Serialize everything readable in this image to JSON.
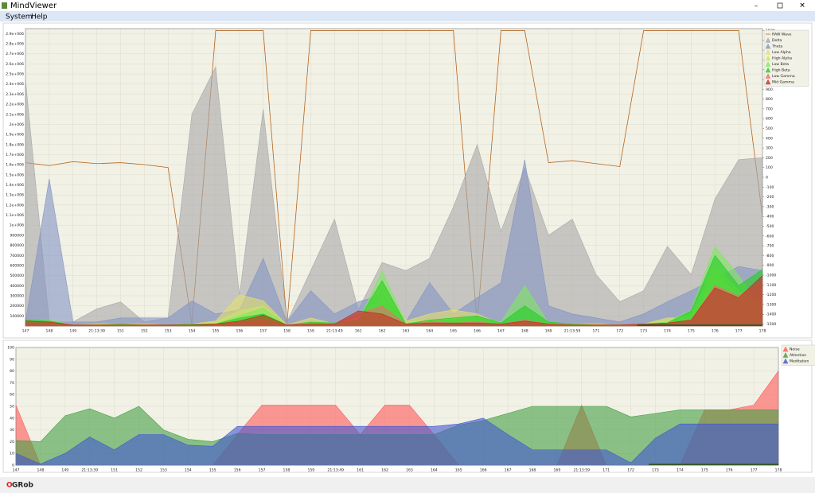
{
  "window": {
    "title": "MindViewer"
  },
  "menu": [
    "System",
    "Help"
  ],
  "footer": {
    "logo": [
      "O",
      "GRob"
    ]
  },
  "chart_data": [
    {
      "type": "area",
      "categories": [
        "147",
        "148",
        "149",
        "21:13:39",
        "151",
        "152",
        "153",
        "154",
        "155",
        "156",
        "157",
        "158",
        "159",
        "21:13:49",
        "161",
        "162",
        "163",
        "164",
        "165",
        "166",
        "167",
        "168",
        "169",
        "21:13:59",
        "171",
        "172",
        "173",
        "174",
        "175",
        "176",
        "177",
        "178"
      ],
      "ylim": [
        0,
        2950000
      ],
      "yticks": [
        100000,
        200000,
        300000,
        400000,
        500000,
        600000,
        700000,
        800000,
        900000,
        {
          "value": 1000000,
          "label": "1e+006"
        },
        {
          "value": 1100000,
          "label": "1.1e+006"
        },
        {
          "value": 1200000,
          "label": "1.2e+006"
        },
        {
          "value": 1300000,
          "label": "1.3e+006"
        },
        {
          "value": 1400000,
          "label": "1.4e+006"
        },
        {
          "value": 1500000,
          "label": "1.5e+006"
        },
        {
          "value": 1600000,
          "label": "1.6e+006"
        },
        {
          "value": 1700000,
          "label": "1.7e+006"
        },
        {
          "value": 1800000,
          "label": "1.8e+006"
        },
        {
          "value": 1900000,
          "label": "1.9e+006"
        },
        {
          "value": 2000000,
          "label": "2e+006"
        },
        {
          "value": 2100000,
          "label": "2.1e+006"
        },
        {
          "value": 2200000,
          "label": "2.2e+006"
        },
        {
          "value": 2300000,
          "label": "2.3e+006"
        },
        {
          "value": 2400000,
          "label": "2.4e+006"
        },
        {
          "value": 2500000,
          "label": "2.5e+006"
        },
        {
          "value": 2600000,
          "label": "2.6e+006"
        },
        {
          "value": 2700000,
          "label": "2.7e+006"
        },
        {
          "value": 2800000,
          "label": "2.8e+006"
        },
        {
          "value": 2900000,
          "label": "2.9e+006"
        }
      ],
      "y2lim": [
        -1520,
        1520
      ],
      "y2ticks": [
        -1500,
        -1400,
        -1300,
        -1200,
        -1100,
        -1000,
        -900,
        -800,
        -700,
        -600,
        -500,
        -400,
        -300,
        -200,
        -100,
        0,
        100,
        200,
        300,
        400,
        500,
        600,
        700,
        800,
        900,
        1000,
        1100,
        1200,
        1300,
        1400,
        1500
      ],
      "grid": true,
      "legend": "top-right",
      "series": [
        {
          "name": "RAW Wave",
          "color": "#b5651d",
          "axis": "y2",
          "values": [
            150,
            120,
            160,
            140,
            150,
            130,
            100,
            -1500,
            1500,
            1500,
            1500,
            -1500,
            1500,
            1500,
            1500,
            1500,
            1500,
            1500,
            1500,
            -1500,
            1500,
            1500,
            150,
            170,
            140,
            110,
            1500,
            1500,
            1500,
            1500,
            1500,
            -400
          ]
        },
        {
          "name": "Delta",
          "color": "#a8a8a8",
          "values": [
            2440000,
            40000,
            40000,
            170000,
            240000,
            40000,
            80000,
            2100000,
            2570000,
            300000,
            2150000,
            40000,
            550000,
            1060000,
            160000,
            630000,
            550000,
            670000,
            1180000,
            1800000,
            940000,
            1570000,
            900000,
            1060000,
            510000,
            240000,
            350000,
            790000,
            510000,
            1260000,
            1650000,
            1670000
          ]
        },
        {
          "name": "Theta",
          "color": "#8494c4",
          "values": [
            40000,
            1460000,
            40000,
            40000,
            80000,
            80000,
            80000,
            250000,
            120000,
            160000,
            670000,
            40000,
            350000,
            120000,
            240000,
            310000,
            40000,
            430000,
            120000,
            280000,
            430000,
            1650000,
            200000,
            120000,
            80000,
            40000,
            120000,
            240000,
            350000,
            470000,
            590000,
            550000
          ]
        },
        {
          "name": "Low Alpha",
          "color": "#e4e070",
          "values": [
            50000,
            20000,
            10000,
            20000,
            20000,
            20000,
            10000,
            20000,
            50000,
            310000,
            250000,
            10000,
            80000,
            20000,
            80000,
            420000,
            50000,
            120000,
            160000,
            120000,
            20000,
            60000,
            20000,
            20000,
            20000,
            10000,
            20000,
            80000,
            80000,
            540000,
            300000,
            250000
          ]
        },
        {
          "name": "High Alpha",
          "color": "#c8e860",
          "values": [
            30000,
            20000,
            10000,
            10000,
            10000,
            10000,
            10000,
            20000,
            40000,
            150000,
            200000,
            10000,
            40000,
            20000,
            60000,
            300000,
            40000,
            60000,
            80000,
            60000,
            20000,
            40000,
            20000,
            20000,
            10000,
            10000,
            20000,
            60000,
            120000,
            600000,
            350000,
            200000
          ]
        },
        {
          "name": "Low Beta",
          "color": "#80e860",
          "values": [
            40000,
            60000,
            10000,
            10000,
            10000,
            10000,
            10000,
            20000,
            20000,
            100000,
            180000,
            10000,
            30000,
            20000,
            40000,
            550000,
            30000,
            50000,
            60000,
            90000,
            40000,
            400000,
            30000,
            20000,
            10000,
            10000,
            20000,
            40000,
            160000,
            790000,
            500000,
            150000
          ]
        },
        {
          "name": "High Beta",
          "color": "#20d020",
          "values": [
            60000,
            50000,
            10000,
            10000,
            20000,
            10000,
            10000,
            20000,
            20000,
            80000,
            120000,
            10000,
            40000,
            30000,
            60000,
            450000,
            20000,
            60000,
            80000,
            100000,
            30000,
            200000,
            40000,
            20000,
            10000,
            10000,
            20000,
            30000,
            150000,
            700000,
            400000,
            560000
          ]
        },
        {
          "name": "Low Gamma",
          "color": "#e87070",
          "values": [
            30000,
            30000,
            10000,
            10000,
            10000,
            10000,
            10000,
            10000,
            20000,
            40000,
            60000,
            10000,
            30000,
            20000,
            120000,
            200000,
            20000,
            40000,
            30000,
            40000,
            20000,
            60000,
            20000,
            10000,
            10000,
            10000,
            20000,
            30000,
            60000,
            400000,
            300000,
            450000
          ]
        },
        {
          "name": "Mid Gamma",
          "color": "#c03020",
          "values": [
            50000,
            40000,
            10000,
            10000,
            10000,
            10000,
            10000,
            10000,
            20000,
            50000,
            110000,
            10000,
            20000,
            20000,
            150000,
            120000,
            20000,
            30000,
            30000,
            30000,
            20000,
            50000,
            20000,
            10000,
            10000,
            10000,
            20000,
            30000,
            60000,
            380000,
            280000,
            500000
          ]
        }
      ]
    },
    {
      "type": "area",
      "categories": [
        "147",
        "148",
        "149",
        "21:13:39",
        "151",
        "152",
        "153",
        "154",
        "155",
        "156",
        "157",
        "158",
        "159",
        "21:13:49",
        "161",
        "162",
        "163",
        "164",
        "165",
        "166",
        "167",
        "168",
        "169",
        "21:13:59",
        "171",
        "172",
        "173",
        "174",
        "175",
        "176",
        "177",
        "178"
      ],
      "ylim": [
        0,
        100
      ],
      "yticks": [
        0,
        10,
        20,
        30,
        40,
        50,
        60,
        70,
        80,
        90,
        100
      ],
      "grid": true,
      "legend": "top-right",
      "series": [
        {
          "name": "Noise",
          "color": "#ff5a5a",
          "values": [
            51,
            0,
            0,
            0,
            0,
            0,
            0,
            0,
            0,
            26,
            51,
            51,
            51,
            51,
            26,
            51,
            51,
            26,
            0,
            0,
            0,
            0,
            0,
            51,
            0,
            0,
            0,
            0,
            47,
            47,
            51,
            80
          ]
        },
        {
          "name": "Attention",
          "color": "#44a044",
          "values": [
            21,
            20,
            42,
            48,
            40,
            50,
            30,
            22,
            20,
            27,
            26,
            26,
            26,
            26,
            26,
            26,
            26,
            26,
            34,
            38,
            44,
            50,
            50,
            50,
            50,
            41,
            44,
            47,
            47,
            47,
            47,
            47
          ]
        },
        {
          "name": "Meditation",
          "color": "#4458d0",
          "values": [
            10,
            1,
            10,
            24,
            13,
            26,
            26,
            17,
            16,
            33,
            33,
            33,
            33,
            33,
            33,
            33,
            33,
            33,
            35,
            40,
            26,
            13,
            13,
            13,
            13,
            2,
            23,
            35,
            35,
            35,
            35,
            35
          ]
        }
      ]
    }
  ]
}
